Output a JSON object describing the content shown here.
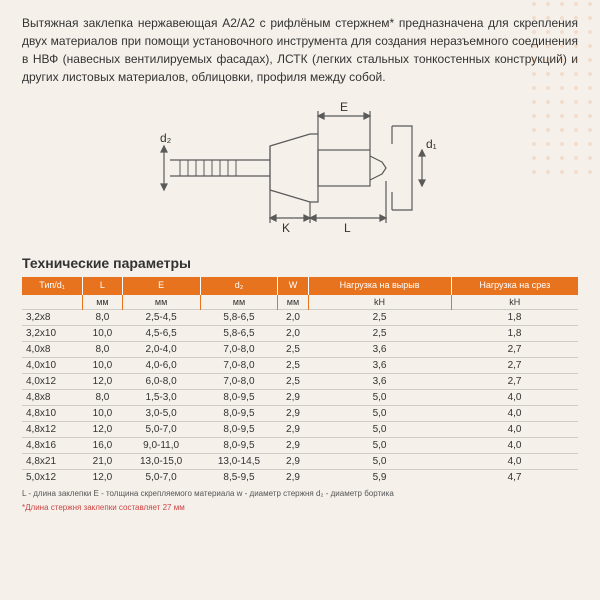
{
  "description": "Вытяжная заклепка нержавеющая A2/A2 с рифлёным стержнем* предназначена для скрепления двух материалов при помощи установочного инструмента для создания неразъемного соединения в НВФ (навесных вентилируемых фасадах), ЛСТК (легких стальных тонкостенных конструкций) и других листовых материалов, облицовки, профиля между собой.",
  "section_title": "Технические параметры",
  "diagram": {
    "labels": {
      "E": "E",
      "L": "L",
      "K": "K",
      "d1": "d₁",
      "d2": "d₂"
    },
    "stroke": "#5a5a5a"
  },
  "headers": [
    "Тип/d₁",
    "L",
    "E",
    "d₂",
    "W",
    "Нагрузка на вырыв",
    "Нагрузка на срез"
  ],
  "units": [
    "",
    "мм",
    "мм",
    "мм",
    "мм",
    "kH",
    "kH"
  ],
  "rows": [
    [
      "3,2x8",
      "8,0",
      "2,5-4,5",
      "5,8-6,5",
      "2,0",
      "2,5",
      "1,8"
    ],
    [
      "3,2x10",
      "10,0",
      "4,5-6,5",
      "5,8-6,5",
      "2,0",
      "2,5",
      "1,8"
    ],
    [
      "4,0x8",
      "8,0",
      "2,0-4,0",
      "7,0-8,0",
      "2,5",
      "3,6",
      "2,7"
    ],
    [
      "4,0x10",
      "10,0",
      "4,0-6,0",
      "7,0-8,0",
      "2,5",
      "3,6",
      "2,7"
    ],
    [
      "4,0x12",
      "12,0",
      "6,0-8,0",
      "7,0-8,0",
      "2,5",
      "3,6",
      "2,7"
    ],
    [
      "4,8x8",
      "8,0",
      "1,5-3,0",
      "8,0-9,5",
      "2,9",
      "5,0",
      "4,0"
    ],
    [
      "4,8x10",
      "10,0",
      "3,0-5,0",
      "8,0-9,5",
      "2,9",
      "5,0",
      "4,0"
    ],
    [
      "4,8x12",
      "12,0",
      "5,0-7,0",
      "8,0-9,5",
      "2,9",
      "5,0",
      "4,0"
    ],
    [
      "4,8x16",
      "16,0",
      "9,0-11,0",
      "8,0-9,5",
      "2,9",
      "5,0",
      "4,0"
    ],
    [
      "4,8x21",
      "21,0",
      "13,0-15,0",
      "13,0-14,5",
      "2,9",
      "5,0",
      "4,0"
    ],
    [
      "5,0x12",
      "12,0",
      "5,0-7,0",
      "8,5-9,5",
      "2,9",
      "5,9",
      "4,7"
    ]
  ],
  "legend": "L - длина заклепки    E - толщина скрепляемого материала    w - диаметр стержня    d₂ - диаметр бортика",
  "footnote": "*Длина стержня заклепки составляет 27 мм",
  "colors": {
    "accent": "#e8731f",
    "bg": "#f5f0ea",
    "text": "#333333"
  }
}
